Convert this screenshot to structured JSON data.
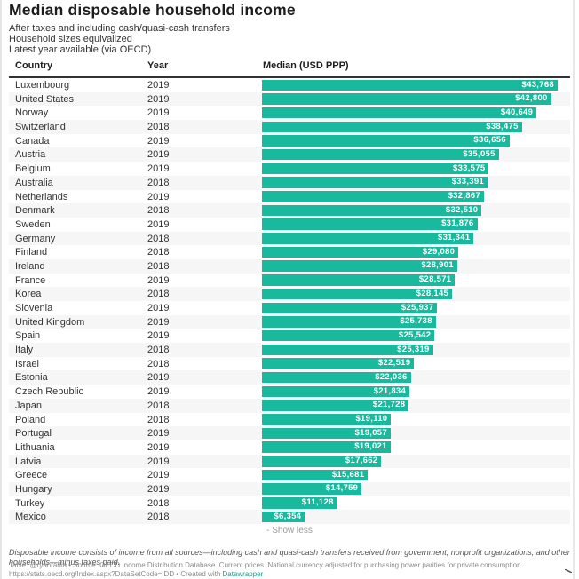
{
  "title": "Median disposable household income",
  "subtitle_lines": [
    "After taxes and including cash/quasi-cash transfers",
    "Household sizes equivalized",
    "Latest year available (via OECD)"
  ],
  "colors": {
    "bar": "#18b99c",
    "link": "#1d9c8e",
    "row_alt": "#f6f6f6"
  },
  "show_less_label": "- Show less",
  "notes": "Disposable income consists of income from all sources—including cash and quasi-cash transfers received from government, nonprofit organizations, and other households—minus taxes paid.",
  "source_text": "Table: @ryanradia • Source: OECD Income Distribution Database. Current prices. National currency adjusted for purchasing power parities for private consumption. https://stats.oecd.org/Index.aspx?DataSetCode=IDD • Created with ",
  "source_link": "Datawrapper",
  "chart_data": {
    "type": "table",
    "title": "Median disposable household income",
    "columns": [
      "Country",
      "Year",
      "Median (USD PPP)"
    ],
    "value_prefix": "$",
    "xlim": [
      0,
      43768
    ],
    "rows": [
      {
        "country": "Luxembourg",
        "year": "2019",
        "value": 43768
      },
      {
        "country": "United States",
        "year": "2019",
        "value": 42800
      },
      {
        "country": "Norway",
        "year": "2019",
        "value": 40649
      },
      {
        "country": "Switzerland",
        "year": "2018",
        "value": 38475
      },
      {
        "country": "Canada",
        "year": "2019",
        "value": 36656
      },
      {
        "country": "Austria",
        "year": "2019",
        "value": 35055
      },
      {
        "country": "Belgium",
        "year": "2019",
        "value": 33575
      },
      {
        "country": "Australia",
        "year": "2018",
        "value": 33391
      },
      {
        "country": "Netherlands",
        "year": "2019",
        "value": 32867
      },
      {
        "country": "Denmark",
        "year": "2018",
        "value": 32510
      },
      {
        "country": "Sweden",
        "year": "2019",
        "value": 31876
      },
      {
        "country": "Germany",
        "year": "2018",
        "value": 31341
      },
      {
        "country": "Finland",
        "year": "2018",
        "value": 29080
      },
      {
        "country": "Ireland",
        "year": "2018",
        "value": 28901
      },
      {
        "country": "France",
        "year": "2019",
        "value": 28571
      },
      {
        "country": "Korea",
        "year": "2018",
        "value": 28145
      },
      {
        "country": "Slovenia",
        "year": "2019",
        "value": 25937
      },
      {
        "country": "United Kingdom",
        "year": "2019",
        "value": 25738
      },
      {
        "country": "Spain",
        "year": "2019",
        "value": 25542
      },
      {
        "country": "Italy",
        "year": "2018",
        "value": 25319
      },
      {
        "country": "Israel",
        "year": "2018",
        "value": 22519
      },
      {
        "country": "Estonia",
        "year": "2019",
        "value": 22036
      },
      {
        "country": "Czech Republic",
        "year": "2019",
        "value": 21834
      },
      {
        "country": "Japan",
        "year": "2018",
        "value": 21728
      },
      {
        "country": "Poland",
        "year": "2018",
        "value": 19110
      },
      {
        "country": "Portugal",
        "year": "2019",
        "value": 19057
      },
      {
        "country": "Lithuania",
        "year": "2019",
        "value": 19021
      },
      {
        "country": "Latvia",
        "year": "2019",
        "value": 17662
      },
      {
        "country": "Greece",
        "year": "2019",
        "value": 15681
      },
      {
        "country": "Hungary",
        "year": "2019",
        "value": 14759
      },
      {
        "country": "Turkey",
        "year": "2018",
        "value": 11128
      },
      {
        "country": "Mexico",
        "year": "2018",
        "value": 6354
      }
    ]
  }
}
